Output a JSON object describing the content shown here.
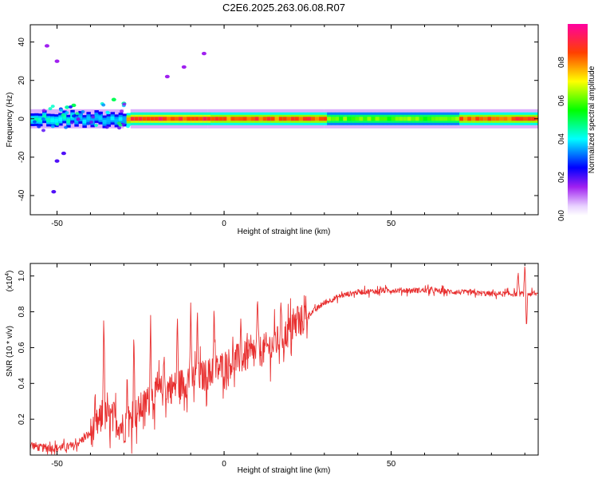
{
  "title": "C2E6.2025.263.06.08.R07",
  "chart_data": [
    {
      "type": "heatmap",
      "name": "spectrogram",
      "xlabel": "Height of straight line (km)",
      "ylabel": "Frequency (Hz)",
      "xlim": [
        -58,
        94
      ],
      "ylim": [
        -50,
        49
      ],
      "xticks": [
        -50,
        0,
        50
      ],
      "yticks": [
        -40,
        -20,
        0,
        20,
        40
      ],
      "grid": false,
      "colorbar": {
        "label": "Normalized spectral amplitude",
        "range": [
          0.0,
          1.0
        ],
        "ticks": [
          "0.0",
          "0.2",
          "0.4",
          "0.6",
          "0.8"
        ],
        "stops": [
          "#ffffff",
          "#a020f0",
          "#0000ff",
          "#00ffff",
          "#00ff00",
          "#ffff00",
          "#ff0000",
          "#ff00a0"
        ]
      },
      "band": {
        "center_freq_hz": 0,
        "segments": [
          {
            "x": [
              -58,
              -45
            ],
            "amplitude": 0.45
          },
          {
            "x": [
              -45,
              -30
            ],
            "amplitude": 0.4
          },
          {
            "x": [
              -28,
              -5
            ],
            "amplitude": 0.95
          },
          {
            "x": [
              -5,
              30
            ],
            "amplitude": 0.9
          },
          {
            "x": [
              30,
              70
            ],
            "amplitude": 0.65
          },
          {
            "x": [
              70,
              94
            ],
            "amplitude": 0.9
          }
        ],
        "scatter_points": [
          {
            "x": -53,
            "y": 38,
            "a": 0.15
          },
          {
            "x": -50,
            "y": 30,
            "a": 0.15
          },
          {
            "x": -48,
            "y": -18,
            "a": 0.2
          },
          {
            "x": -50,
            "y": -22,
            "a": 0.2
          },
          {
            "x": -51,
            "y": -38,
            "a": 0.2
          },
          {
            "x": -17,
            "y": 22,
            "a": 0.15
          },
          {
            "x": -12,
            "y": 27,
            "a": 0.15
          },
          {
            "x": -6,
            "y": 34,
            "a": 0.15
          },
          {
            "x": -30,
            "y": 8,
            "a": 0.45
          },
          {
            "x": -33,
            "y": 10,
            "a": 0.5
          },
          {
            "x": -45,
            "y": 7,
            "a": 0.5
          },
          {
            "x": -47,
            "y": 6,
            "a": 0.45
          }
        ]
      }
    },
    {
      "type": "line",
      "name": "snr",
      "xlabel": "Height of straight line (km)",
      "ylabel": "SNR (10 * v/v)",
      "yunit": "(x10^4)",
      "yunit_base": "(x10",
      "yunit_exp": "4",
      "yunit_close": ")",
      "xlim": [
        -58,
        94
      ],
      "ylim": [
        0,
        1.07
      ],
      "xticks": [
        -50,
        0,
        50
      ],
      "yticks": [
        0.2,
        0.4,
        0.6,
        0.8,
        1.0
      ],
      "color": "#e83030",
      "grid": false,
      "trend": [
        {
          "x": -58,
          "y": 0.06
        },
        {
          "x": -55,
          "y": 0.04
        },
        {
          "x": -50,
          "y": 0.04
        },
        {
          "x": -45,
          "y": 0.05
        },
        {
          "x": -40,
          "y": 0.12
        },
        {
          "x": -36,
          "y": 0.22
        },
        {
          "x": -33,
          "y": 0.2
        },
        {
          "x": -30,
          "y": 0.15
        },
        {
          "x": -25,
          "y": 0.26
        },
        {
          "x": -20,
          "y": 0.35
        },
        {
          "x": -15,
          "y": 0.38
        },
        {
          "x": -10,
          "y": 0.42
        },
        {
          "x": -5,
          "y": 0.45
        },
        {
          "x": 0,
          "y": 0.5
        },
        {
          "x": 5,
          "y": 0.54
        },
        {
          "x": 10,
          "y": 0.57
        },
        {
          "x": 15,
          "y": 0.62
        },
        {
          "x": 20,
          "y": 0.7
        },
        {
          "x": 25,
          "y": 0.78
        },
        {
          "x": 30,
          "y": 0.85
        },
        {
          "x": 35,
          "y": 0.89
        },
        {
          "x": 40,
          "y": 0.91
        },
        {
          "x": 50,
          "y": 0.92
        },
        {
          "x": 60,
          "y": 0.92
        },
        {
          "x": 70,
          "y": 0.91
        },
        {
          "x": 80,
          "y": 0.9
        },
        {
          "x": 88,
          "y": 0.9
        },
        {
          "x": 94,
          "y": 0.9
        }
      ],
      "peaks": [
        {
          "x": -36,
          "y": 0.82
        },
        {
          "x": -33,
          "y": 0.3
        },
        {
          "x": -29,
          "y": 0.45
        },
        {
          "x": -27,
          "y": 0.7
        },
        {
          "x": -22,
          "y": 0.78
        },
        {
          "x": -18,
          "y": 0.55
        },
        {
          "x": -14,
          "y": 0.8
        },
        {
          "x": -10,
          "y": 0.85
        },
        {
          "x": -8,
          "y": 0.83
        },
        {
          "x": -3,
          "y": 0.84
        },
        {
          "x": 5,
          "y": 0.76
        },
        {
          "x": 10,
          "y": 0.9
        },
        {
          "x": 17,
          "y": 0.85
        },
        {
          "x": 22,
          "y": 0.84
        },
        {
          "x": 88,
          "y": 1.03
        },
        {
          "x": 90,
          "y": 1.07
        },
        {
          "x": 90.5,
          "y": 0.7
        }
      ],
      "noise_amplitude_early": 0.18,
      "noise_amplitude_late": 0.03
    }
  ]
}
